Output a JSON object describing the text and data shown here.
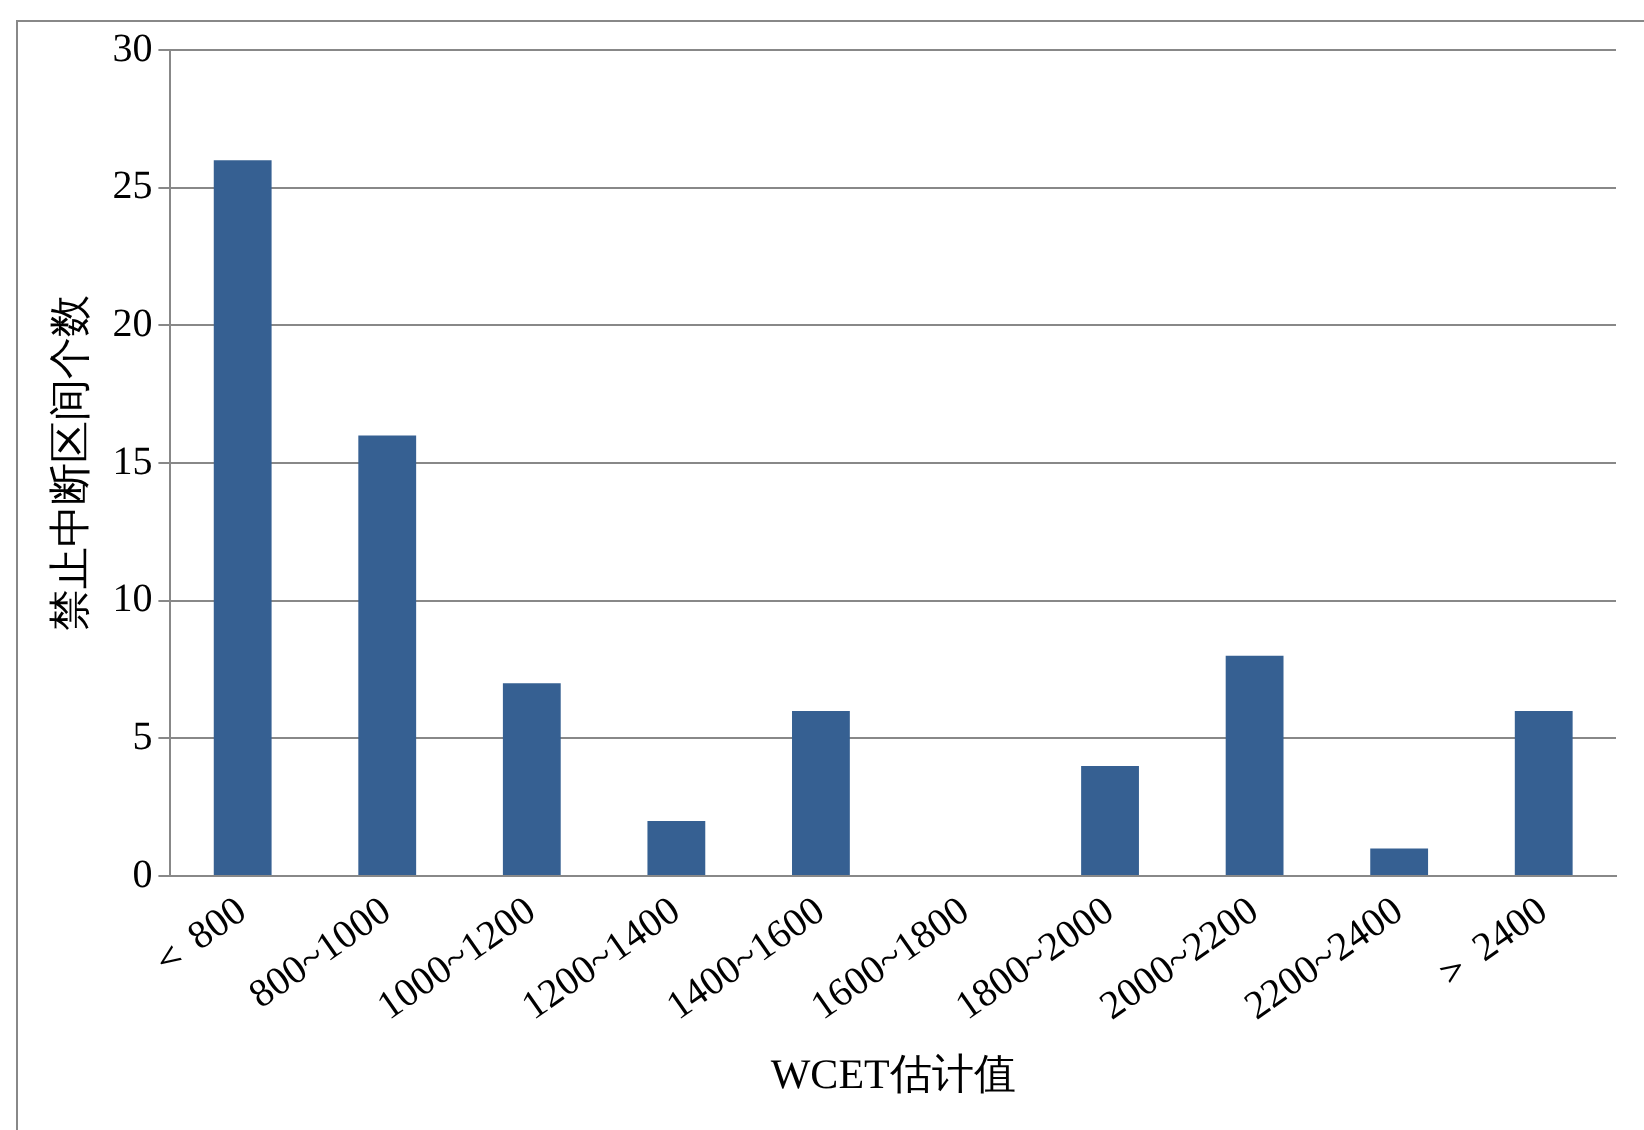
{
  "chart_data": {
    "type": "bar",
    "xlabel": "WCET估计值",
    "ylabel": "禁止中断区间个数",
    "categories": [
      "＜ 800",
      "800~1000",
      "1000~1200",
      "1200~1400",
      "1400~1600",
      "1600~1800",
      "1800~2000",
      "2000~2200",
      "2200~2400",
      "＞ 2400"
    ],
    "values": [
      26,
      16,
      7,
      2,
      6,
      0,
      4,
      8,
      1,
      6
    ],
    "color": "#366092",
    "ylim": [
      0,
      30
    ],
    "yticks": [
      0,
      5,
      10,
      15,
      20,
      25,
      30
    ],
    "grid": "y",
    "legend": false
  }
}
